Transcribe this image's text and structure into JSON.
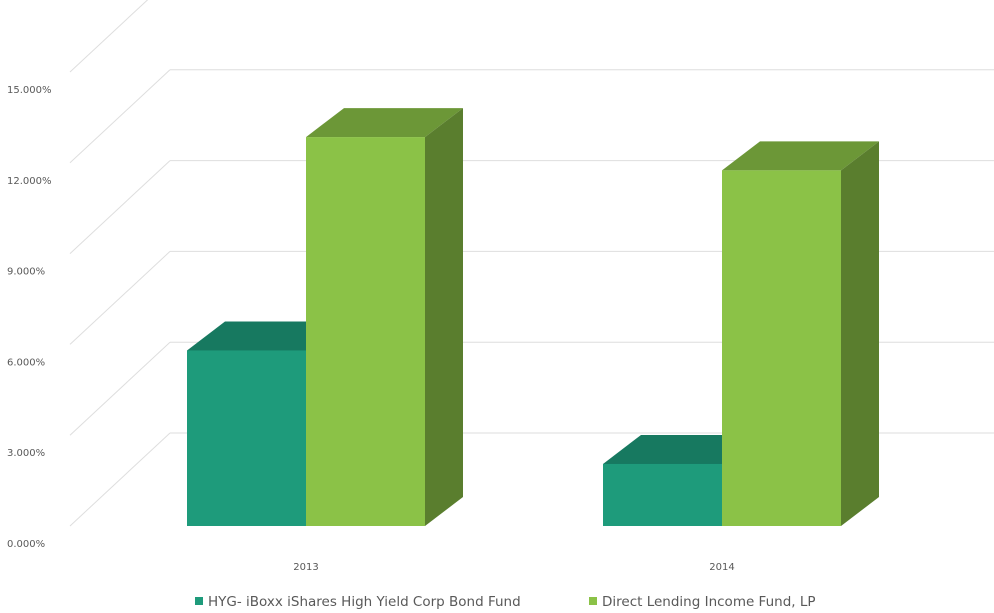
{
  "chart_data": {
    "type": "bar",
    "style": "3d-clustered-column",
    "categories": [
      "2013",
      "2014"
    ],
    "series": [
      {
        "name": "HYG- iBoxx iShares High Yield Corp Bond Fund",
        "values": [
          5.8,
          2.05
        ],
        "color": "#1E9B7B"
      },
      {
        "name": "Direct Lending Income Fund, LP",
        "values": [
          12.85,
          11.75
        ],
        "color": "#8BC247"
      }
    ],
    "y_ticks": [
      "0.000%",
      "3.000%",
      "6.000%",
      "9.000%",
      "12.000%",
      "15.000%"
    ],
    "ylim": [
      0,
      15
    ],
    "grid": true,
    "legend_position": "bottom"
  }
}
